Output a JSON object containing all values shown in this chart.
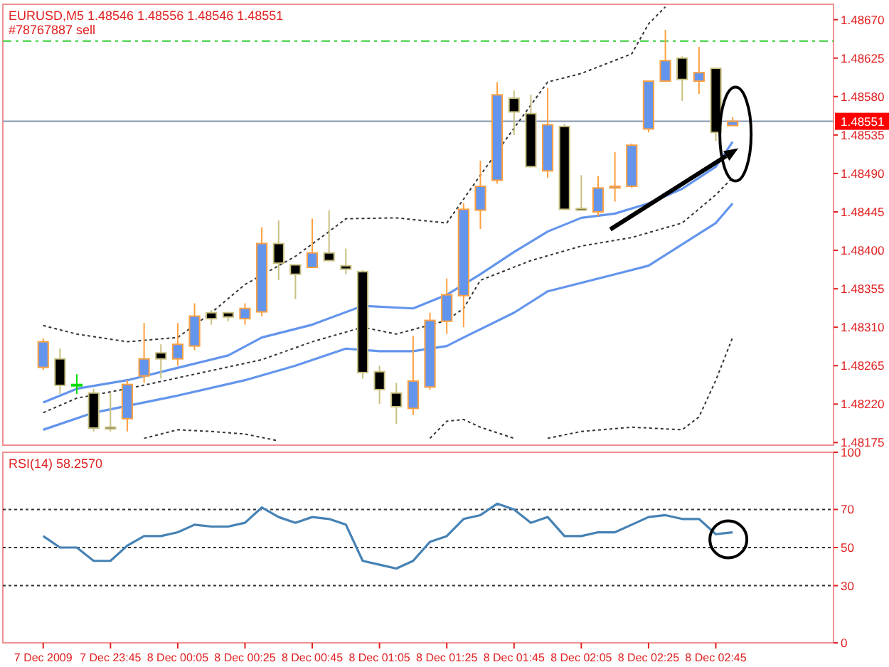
{
  "chart_data": [
    {
      "type": "candlestick",
      "title": "EURUSD,M5  1.48546 1.48556 1.48546 1.48551",
      "x": [
        "2009-12-07T23:25",
        "2009-12-07T23:30",
        "2009-12-07T23:35",
        "2009-12-07T23:40",
        "2009-12-07T23:45",
        "2009-12-07T23:50",
        "2009-12-07T23:55",
        "2009-12-08T00:00",
        "2009-12-08T00:05",
        "2009-12-08T00:10",
        "2009-12-08T00:15",
        "2009-12-08T00:20",
        "2009-12-08T00:25",
        "2009-12-08T00:30",
        "2009-12-08T00:35",
        "2009-12-08T00:40",
        "2009-12-08T00:45",
        "2009-12-08T00:50",
        "2009-12-08T00:55",
        "2009-12-08T01:00",
        "2009-12-08T01:05",
        "2009-12-08T01:10",
        "2009-12-08T01:15",
        "2009-12-08T01:20",
        "2009-12-08T01:25",
        "2009-12-08T01:30",
        "2009-12-08T01:35",
        "2009-12-08T01:40",
        "2009-12-08T01:45",
        "2009-12-08T01:50",
        "2009-12-08T01:55",
        "2009-12-08T02:00",
        "2009-12-08T02:05",
        "2009-12-08T02:10",
        "2009-12-08T02:15",
        "2009-12-08T02:20",
        "2009-12-08T02:25",
        "2009-12-08T02:30",
        "2009-12-08T02:35",
        "2009-12-08T02:40",
        "2009-12-08T02:45",
        "2009-12-08T02:50"
      ],
      "ohlc": [
        [
          1.48263,
          1.48297,
          1.4826,
          1.48293
        ],
        [
          1.48273,
          1.48285,
          1.48232,
          1.48242
        ],
        [
          1.48243,
          1.48255,
          1.48232,
          1.48243
        ],
        [
          1.48233,
          1.48238,
          1.48188,
          1.48192
        ],
        [
          1.48193,
          1.48233,
          1.48188,
          1.48191
        ],
        [
          1.48203,
          1.48248,
          1.48188,
          1.48243
        ],
        [
          1.48253,
          1.48315,
          1.48245,
          1.48273
        ],
        [
          1.4828,
          1.4829,
          1.4825,
          1.48273
        ],
        [
          1.48273,
          1.48315,
          1.48265,
          1.4829
        ],
        [
          1.48288,
          1.48338,
          1.48283,
          1.48323
        ],
        [
          1.48327,
          1.4833,
          1.48313,
          1.4832
        ],
        [
          1.48327,
          1.48328,
          1.48317,
          1.48322
        ],
        [
          1.4832,
          1.48338,
          1.48313,
          1.48332
        ],
        [
          1.48328,
          1.48427,
          1.48323,
          1.48408
        ],
        [
          1.48408,
          1.48435,
          1.48365,
          1.48385
        ],
        [
          1.48383,
          1.48383,
          1.48343,
          1.48372
        ],
        [
          1.4838,
          1.48437,
          1.4838,
          1.48397
        ],
        [
          1.48397,
          1.48447,
          1.48388,
          1.48388
        ],
        [
          1.48382,
          1.48402,
          1.48372,
          1.48378
        ],
        [
          1.48375,
          1.48377,
          1.4825,
          1.48257
        ],
        [
          1.48258,
          1.48265,
          1.4822,
          1.48237
        ],
        [
          1.48233,
          1.48245,
          1.48197,
          1.48217
        ],
        [
          1.48215,
          1.483,
          1.48207,
          1.48247
        ],
        [
          1.4824,
          1.48327,
          1.48237,
          1.48318
        ],
        [
          1.48317,
          1.48367,
          1.48302,
          1.48348
        ],
        [
          1.48347,
          1.48455,
          1.4831,
          1.48448
        ],
        [
          1.48447,
          1.48505,
          1.48425,
          1.48475
        ],
        [
          1.48482,
          1.48597,
          1.48478,
          1.48582
        ],
        [
          1.48578,
          1.48587,
          1.48535,
          1.48562
        ],
        [
          1.4856,
          1.48582,
          1.48497,
          1.48498
        ],
        [
          1.48493,
          1.4859,
          1.48485,
          1.48547
        ],
        [
          1.48545,
          1.48548,
          1.48448,
          1.48448
        ],
        [
          1.48449,
          1.48488,
          1.48447,
          1.48447
        ],
        [
          1.48445,
          1.48487,
          1.4844,
          1.48473
        ],
        [
          1.48473,
          1.48515,
          1.48457,
          1.48475
        ],
        [
          1.48475,
          1.48525,
          1.48473,
          1.48523
        ],
        [
          1.48542,
          1.48598,
          1.48538,
          1.48598
        ],
        [
          1.48598,
          1.48658,
          1.48597,
          1.48622
        ],
        [
          1.48625,
          1.48627,
          1.48575,
          1.486
        ],
        [
          1.48598,
          1.48638,
          1.48583,
          1.48608
        ],
        [
          1.48613,
          1.48613,
          1.48528,
          1.48538
        ],
        [
          1.48546,
          1.48556,
          1.48546,
          1.48551
        ]
      ],
      "series": [
        {
          "type": "line",
          "color": "#6495ed",
          "x": [
            "2009-12-07T23:25",
            "2009-12-07T23:35",
            "2009-12-07T23:50",
            "2009-12-08T00:20",
            "2009-12-08T00:30",
            "2009-12-08T00:45",
            "2009-12-08T01:00",
            "2009-12-08T01:15",
            "2009-12-08T01:25",
            "2009-12-08T01:30",
            "2009-12-08T01:35",
            "2009-12-08T01:45",
            "2009-12-08T01:55",
            "2009-12-08T02:05",
            "2009-12-08T02:15",
            "2009-12-08T02:25",
            "2009-12-08T02:35",
            "2009-12-08T02:45",
            "2009-12-08T02:50"
          ],
          "values": [
            1.48222,
            1.48238,
            1.48248,
            1.48277,
            1.48298,
            1.48313,
            1.48335,
            1.48332,
            1.48348,
            1.4836,
            1.48372,
            1.48398,
            1.48422,
            1.48438,
            1.48443,
            1.48455,
            1.48472,
            1.48498,
            1.48527
          ]
        },
        {
          "type": "line",
          "color": "#6495ed",
          "x": [
            "2009-12-07T23:25",
            "2009-12-07T23:40",
            "2009-12-08T00:05",
            "2009-12-08T00:25",
            "2009-12-08T00:40",
            "2009-12-08T00:55",
            "2009-12-08T01:05",
            "2009-12-08T01:15",
            "2009-12-08T01:25",
            "2009-12-08T01:30",
            "2009-12-08T01:45",
            "2009-12-08T01:55",
            "2009-12-08T02:15",
            "2009-12-08T02:25",
            "2009-12-08T02:35",
            "2009-12-08T02:45",
            "2009-12-08T02:50"
          ],
          "values": [
            1.4819,
            1.4821,
            1.4823,
            1.48248,
            1.48265,
            1.48285,
            1.48282,
            1.48282,
            1.48288,
            1.48298,
            1.48327,
            1.48352,
            1.48372,
            1.48382,
            1.48407,
            1.48432,
            1.48455
          ]
        },
        {
          "type": "line",
          "color": "#333333",
          "line_style": "dotted",
          "x": [
            "2009-12-07T23:25",
            "2009-12-07T23:35",
            "2009-12-07T23:50",
            "2009-12-08T00:05",
            "2009-12-08T00:15",
            "2009-12-08T00:25",
            "2009-12-08T00:40",
            "2009-12-08T00:50",
            "2009-12-08T00:55",
            "2009-12-08T01:10",
            "2009-12-08T01:25",
            "2009-12-08T01:30",
            "2009-12-08T01:35",
            "2009-12-08T01:45",
            "2009-12-08T01:55",
            "2009-12-08T02:05",
            "2009-12-08T02:20",
            "2009-12-08T02:25",
            "2009-12-08T02:30"
          ],
          "values": [
            1.48312,
            1.48302,
            1.48293,
            1.48298,
            1.48327,
            1.4836,
            1.48393,
            1.48422,
            1.48437,
            1.48438,
            1.48432,
            1.4846,
            1.48488,
            1.48543,
            1.48597,
            1.48607,
            1.4863,
            1.48665,
            1.48685
          ]
        },
        {
          "type": "line",
          "color": "#333333",
          "line_style": "dotted",
          "x": [
            "2009-12-07T23:25",
            "2009-12-07T23:35",
            "2009-12-07T23:50",
            "2009-12-08T00:10",
            "2009-12-08T00:30",
            "2009-12-08T00:45",
            "2009-12-08T01:00",
            "2009-12-08T01:10",
            "2009-12-08T01:25",
            "2009-12-08T01:30",
            "2009-12-08T01:35",
            "2009-12-08T01:50",
            "2009-12-08T02:05",
            "2009-12-08T02:20",
            "2009-12-08T02:35",
            "2009-12-08T02:45",
            "2009-12-08T02:50"
          ],
          "values": [
            1.4821,
            1.48227,
            1.48238,
            1.48255,
            1.48272,
            1.48293,
            1.4831,
            1.48302,
            1.48318,
            1.48332,
            1.48365,
            1.48388,
            1.48405,
            1.48415,
            1.48432,
            1.48465,
            1.48485
          ]
        },
        {
          "type": "line",
          "color": "#333333",
          "line_style": "dotted",
          "x": [
            "2009-12-07T23:55",
            "2009-12-08T00:05",
            "2009-12-08T00:15",
            "2009-12-08T00:25",
            "2009-12-08T00:35",
            "2009-12-08T00:40",
            "2009-12-08T01:20",
            "2009-12-08T01:25",
            "2009-12-08T01:30",
            "2009-12-08T01:35",
            "2009-12-08T01:45",
            "2009-12-08T01:50",
            "2009-12-08T01:55",
            "2009-12-08T02:05",
            "2009-12-08T02:20",
            "2009-12-08T02:35",
            "2009-12-08T02:40",
            "2009-12-08T02:45",
            "2009-12-08T02:50"
          ],
          "values": [
            1.4818,
            1.4819,
            1.48188,
            1.48185,
            1.48177,
            null,
            1.4818,
            1.482,
            1.48202,
            1.48193,
            1.4818,
            null,
            1.4818,
            1.48188,
            1.48193,
            1.4819,
            1.48205,
            1.48248,
            1.48298
          ]
        }
      ],
      "ref_lines": [
        {
          "axis": "y",
          "value": 1.48645,
          "label": "#78767887 sell",
          "color": "#33cc33",
          "line_style": "dashed"
        },
        {
          "axis": "y",
          "value": 1.48551,
          "label": "1.48551",
          "color": "#8898b0"
        }
      ],
      "xlim": [
        "2009-12-07T23:13",
        "2009-12-08T03:20"
      ],
      "ylim": [
        1.48172,
        1.48688
      ],
      "yticks": [
        {
          "value": 1.4867,
          "label": "1.48670"
        },
        1.48625,
        {
          "value": 1.4858,
          "label": "1.48580"
        },
        1.48535,
        {
          "value": 1.4849,
          "label": "1.48490"
        },
        1.48445,
        {
          "value": 1.484,
          "label": "1.48400"
        },
        1.48355,
        {
          "value": 1.4831,
          "label": "1.48310"
        },
        1.48265,
        {
          "value": 1.4822,
          "label": "1.48220"
        },
        1.48175
      ],
      "tick_labels": "y"
    },
    {
      "type": "line",
      "title": "RSI(14) 58.2570",
      "x": [
        "2009-12-07T23:25",
        "2009-12-07T23:30",
        "2009-12-07T23:35",
        "2009-12-07T23:40",
        "2009-12-07T23:45",
        "2009-12-07T23:50",
        "2009-12-07T23:55",
        "2009-12-08T00:00",
        "2009-12-08T00:05",
        "2009-12-08T00:10",
        "2009-12-08T00:15",
        "2009-12-08T00:20",
        "2009-12-08T00:25",
        "2009-12-08T00:30",
        "2009-12-08T00:35",
        "2009-12-08T00:40",
        "2009-12-08T00:45",
        "2009-12-08T00:50",
        "2009-12-08T00:55",
        "2009-12-08T01:00",
        "2009-12-08T01:05",
        "2009-12-08T01:10",
        "2009-12-08T01:15",
        "2009-12-08T01:20",
        "2009-12-08T01:25",
        "2009-12-08T01:30",
        "2009-12-08T01:35",
        "2009-12-08T01:40",
        "2009-12-08T01:45",
        "2009-12-08T01:50",
        "2009-12-08T01:55",
        "2009-12-08T02:00",
        "2009-12-08T02:05",
        "2009-12-08T02:10",
        "2009-12-08T02:15",
        "2009-12-08T02:20",
        "2009-12-08T02:25",
        "2009-12-08T02:30",
        "2009-12-08T02:35",
        "2009-12-08T02:40",
        "2009-12-08T02:45",
        "2009-12-08T02:50"
      ],
      "series": [
        {
          "color": "#4682b4",
          "values": [
            56,
            50,
            50,
            43,
            43,
            51,
            56,
            56,
            58,
            62,
            61,
            61,
            63,
            71,
            66,
            63,
            66,
            65,
            62,
            43,
            41,
            39,
            43,
            53,
            56,
            65,
            67,
            73,
            70,
            63,
            66,
            56,
            56,
            58,
            58,
            62,
            66,
            67,
            65,
            65,
            57,
            58
          ]
        }
      ],
      "ref_lines": [
        {
          "axis": "y",
          "value": 70,
          "color": "#333333",
          "line_style": "dotted"
        },
        {
          "axis": "y",
          "value": 50,
          "color": "#333333",
          "line_style": "dotted"
        },
        {
          "axis": "y",
          "value": 30,
          "color": "#333333",
          "line_style": "dotted"
        }
      ],
      "xlim": [
        "2009-12-07T23:13",
        "2009-12-08T03:20"
      ],
      "ylim": [
        0,
        100
      ],
      "yticks": [
        0,
        30,
        50,
        70,
        100
      ],
      "xticks": [
        {
          "value": "2009-12-07T23:25",
          "label": "7 Dec 2009"
        },
        {
          "value": "2009-12-07T23:45",
          "label": "7 Dec 23:45"
        },
        {
          "value": "2009-12-08T00:05",
          "label": "8 Dec 00:05"
        },
        {
          "value": "2009-12-08T00:25",
          "label": "8 Dec 00:25"
        },
        {
          "value": "2009-12-08T00:45",
          "label": "8 Dec 00:45"
        },
        {
          "value": "2009-12-08T01:05",
          "label": "8 Dec 01:05"
        },
        {
          "value": "2009-12-08T01:25",
          "label": "8 Dec 01:25"
        },
        {
          "value": "2009-12-08T01:45",
          "label": "8 Dec 01:45"
        },
        {
          "value": "2009-12-08T02:05",
          "label": "8 Dec 02:05"
        },
        {
          "value": "2009-12-08T02:25",
          "label": "8 Dec 02:25"
        },
        {
          "value": "2009-12-08T02:45",
          "label": "8 Dec 02:45"
        }
      ]
    }
  ]
}
